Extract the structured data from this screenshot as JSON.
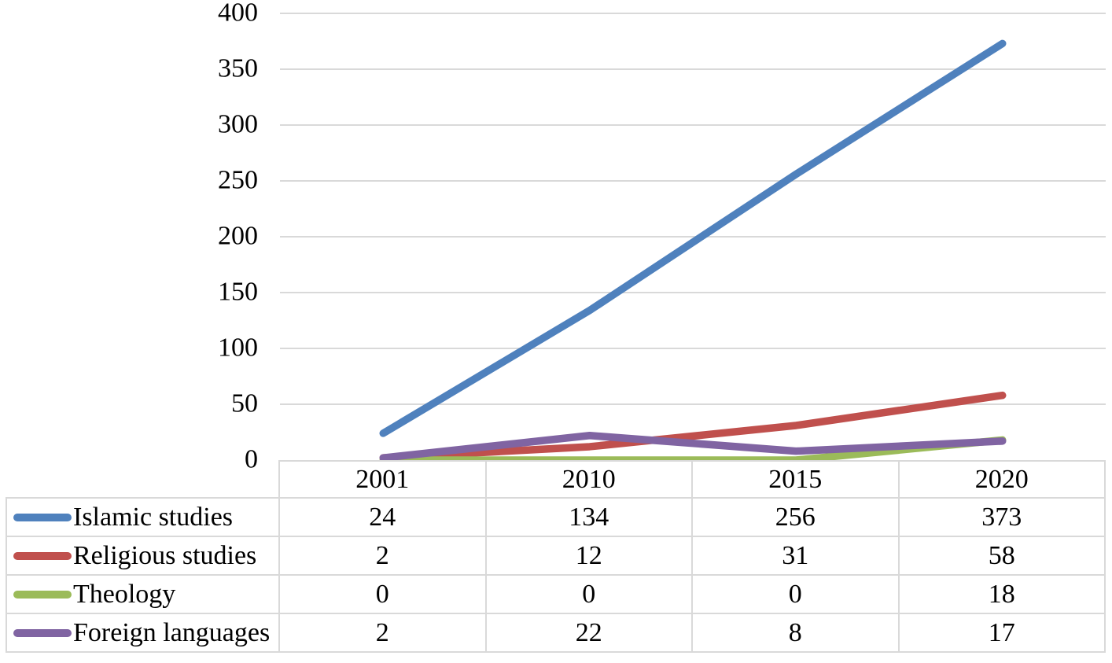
{
  "chart_data": {
    "type": "line",
    "title": "",
    "xlabel": "",
    "ylabel": "",
    "categories": [
      "2001",
      "2010",
      "2015",
      "2020"
    ],
    "series": [
      {
        "name": "Islamic studies",
        "values": [
          24,
          134,
          256,
          373
        ],
        "color": "#4F81BD"
      },
      {
        "name": "Religious studies",
        "values": [
          2,
          12,
          31,
          58
        ],
        "color": "#C0504D"
      },
      {
        "name": "Theology",
        "values": [
          0,
          0,
          0,
          18
        ],
        "color": "#9BBB59"
      },
      {
        "name": "Foreign languages",
        "values": [
          2,
          22,
          8,
          17
        ],
        "color": "#8064A2"
      }
    ],
    "ylim": [
      0,
      400
    ],
    "y_tick_step": 50,
    "y_ticks": [
      400,
      350,
      300,
      250,
      200,
      150,
      100,
      50,
      0
    ],
    "grid": true,
    "gridlines": "horizontal-only",
    "legend_position": "data-table-left"
  },
  "colors": {
    "gridline": "#d9d9d9",
    "table_border": "#d9d9d9",
    "text": "#000000",
    "background": "#ffffff"
  }
}
